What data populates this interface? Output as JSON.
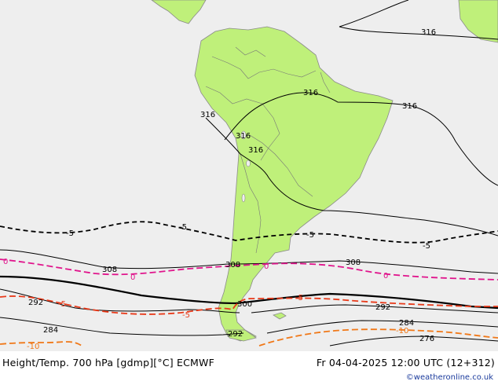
{
  "header": {
    "title": "Height/Temp. 700 hPa [gdmp][°C] ECMWF",
    "valid_time": "Fr 04-04-2025 12:00 UTC (12+312)",
    "credit": "©weatheronline.co.uk"
  },
  "colors": {
    "ocean": "#eeeeee",
    "land": "#bff07a",
    "coast": "#8a8a8a",
    "height_contour": "#000000",
    "temp_zero": "#e0148c",
    "temp_minus5": "#e83a1a",
    "temp_minus10": "#f07818"
  },
  "contours": {
    "height_labels": [
      "316",
      "316",
      "316",
      "316",
      "316",
      "316",
      "308",
      "308",
      "308",
      "300",
      "292",
      "292",
      "292",
      "284",
      "284",
      "276"
    ],
    "temp_labels": [
      "0",
      "0",
      "0",
      "0",
      "-5",
      "-5",
      "-5",
      "-5",
      "-5",
      "-5",
      "-5",
      "-10",
      "-10"
    ]
  }
}
